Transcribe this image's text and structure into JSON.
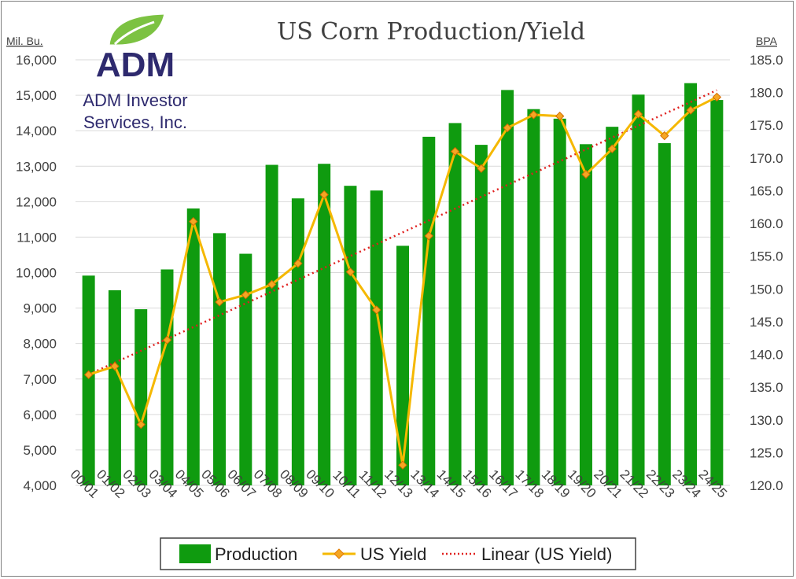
{
  "chart_data": {
    "type": "bar",
    "title": "US Corn Production/Yield",
    "categories": [
      "00/01",
      "01/02",
      "02/03",
      "03/04",
      "04/05",
      "05/06",
      "06/07",
      "07/08",
      "08/09",
      "09/10",
      "10/11",
      "11/12",
      "12/13",
      "13/14",
      "14/15",
      "15/16",
      "16/17",
      "17/18",
      "18/19",
      "19/20",
      "20/21",
      "21/22",
      "22/23",
      "23/24",
      "24/25"
    ],
    "series": [
      {
        "name": "Production",
        "type": "bar",
        "axis": "left",
        "color": "#0f9b0f",
        "values": [
          9915,
          9503,
          8967,
          10089,
          11807,
          11112,
          10531,
          13038,
          12092,
          13067,
          12447,
          12314,
          10755,
          13829,
          14216,
          13602,
          15148,
          14609,
          14340,
          13620,
          14111,
          15018,
          13651,
          15341,
          14867
        ]
      },
      {
        "name": "US Yield",
        "type": "line",
        "axis": "right",
        "color": "#f5b800",
        "marker_color": "#f5a623",
        "values": [
          136.9,
          138.2,
          129.3,
          142.2,
          160.3,
          148.0,
          149.1,
          150.7,
          153.9,
          164.4,
          152.6,
          146.8,
          123.1,
          158.1,
          171.0,
          168.4,
          174.6,
          176.6,
          176.4,
          167.5,
          171.4,
          176.7,
          173.4,
          177.3,
          179.3
        ]
      }
    ],
    "trendline": {
      "name": "Linear (US Yield)",
      "color": "#e0201e",
      "style": "dotted",
      "axis": "right"
    },
    "y_left": {
      "label": "Mil. Bu.",
      "min": 4000,
      "max": 16000,
      "step": 1000
    },
    "y_right": {
      "label": "BPA",
      "min": 120,
      "max": 185,
      "step": 5
    },
    "grid": true,
    "legend_position": "bottom"
  },
  "logo": {
    "wordmark": "ADM",
    "line1": "ADM Investor",
    "line2": "Services, Inc.",
    "leaf_color": "#7cc242",
    "text_color": "#2e2a6e"
  }
}
